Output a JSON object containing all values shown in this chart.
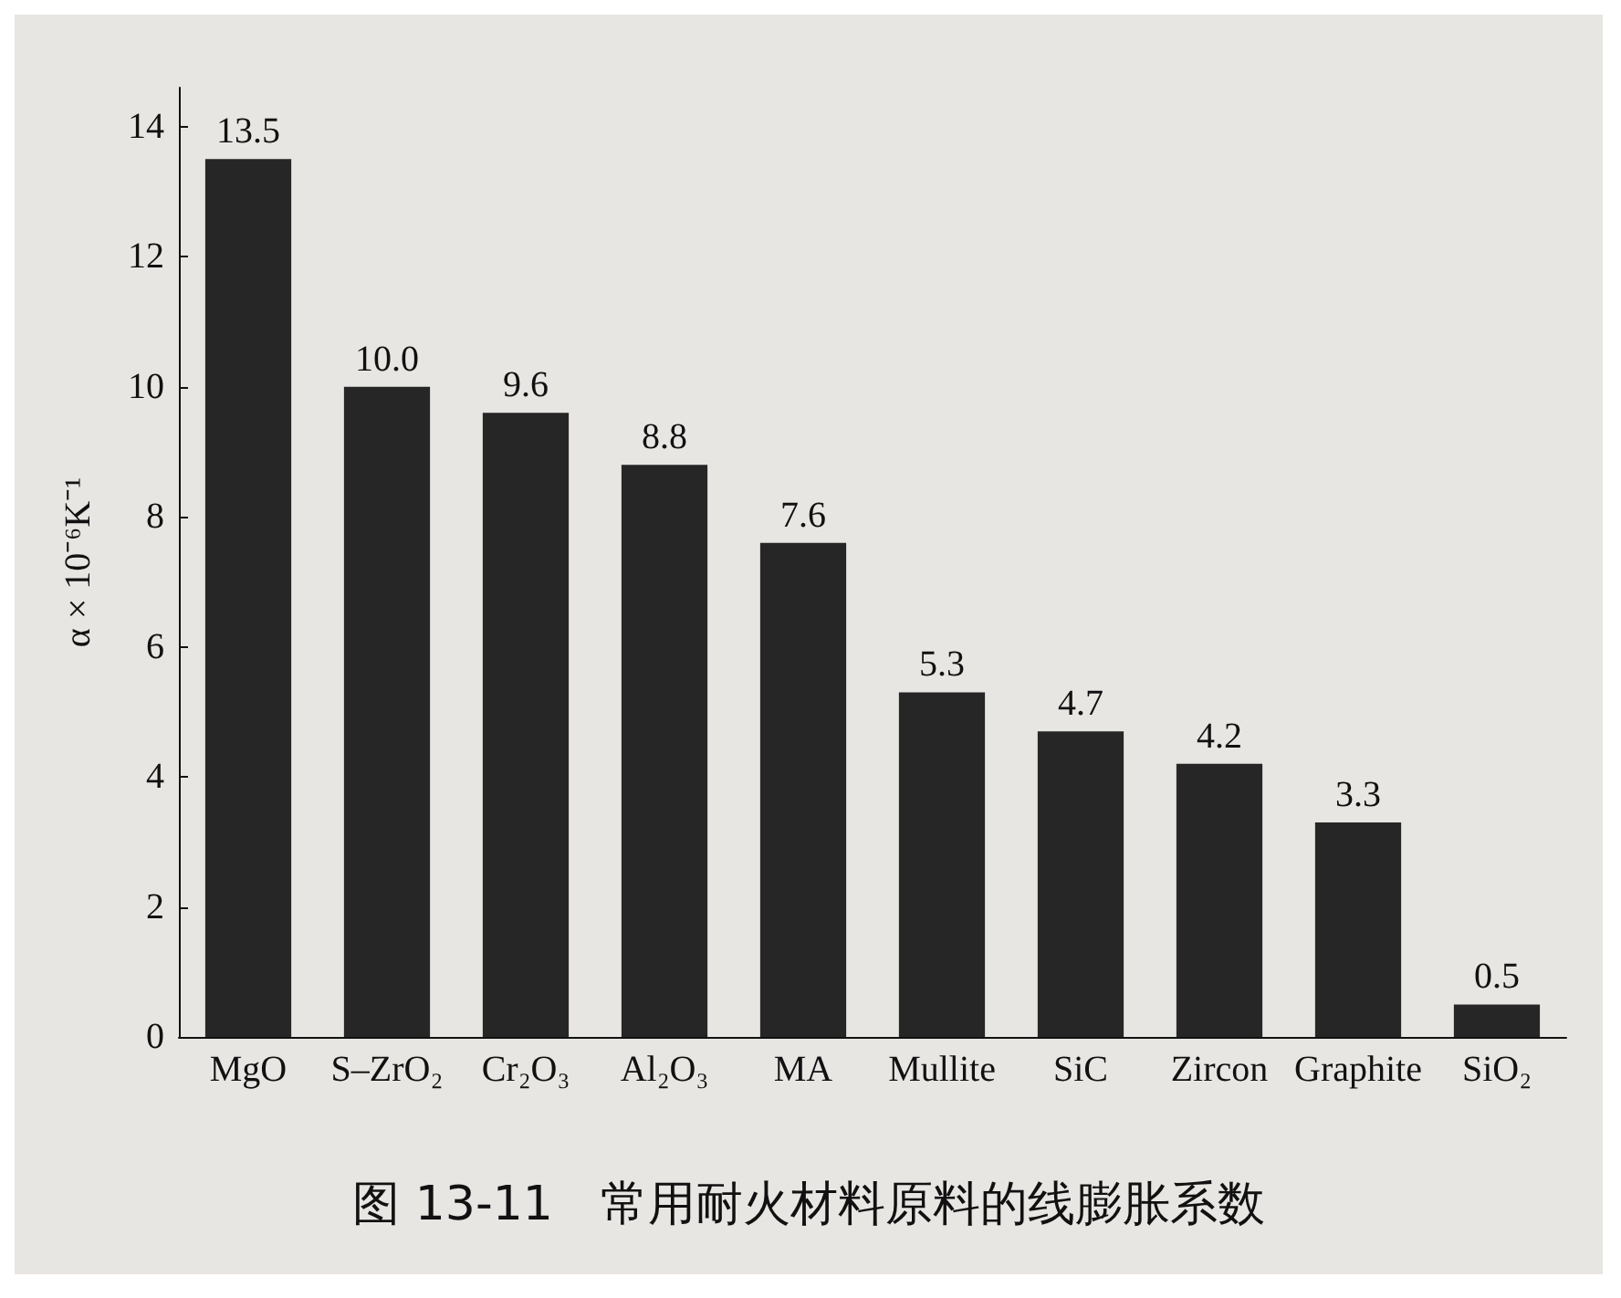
{
  "chart_data": {
    "type": "bar",
    "title": "图 13-11　常用耐火材料原料的线膨胀系数",
    "ylabel": "α × 10⁻⁶K⁻¹",
    "categories": [
      "MgO",
      "S–ZrO₂",
      "Cr₂O₃",
      "Al₂O₃",
      "MA",
      "Mullite",
      "SiC",
      "Zircon",
      "Graphite",
      "SiO₂"
    ],
    "values": [
      13.5,
      10.0,
      9.6,
      8.8,
      7.6,
      5.3,
      4.7,
      4.2,
      3.3,
      0.5
    ],
    "value_labels": [
      "13.5",
      "10.0",
      "9.6",
      "8.8",
      "7.6",
      "5.3",
      "4.7",
      "4.2",
      "3.3",
      "0.5"
    ],
    "color": "#262626",
    "ylim": [
      0,
      14.6
    ],
    "yticks": [
      0,
      2,
      4,
      6,
      8,
      10,
      12,
      14
    ],
    "grid": false
  }
}
